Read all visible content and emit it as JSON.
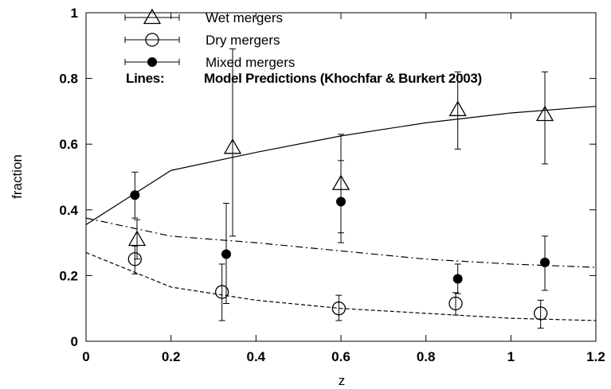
{
  "chart_data": {
    "type": "scatter",
    "xlabel": "z",
    "ylabel": "fraction",
    "xlim": [
      0,
      1.2
    ],
    "ylim": [
      0,
      1
    ],
    "xticks": [
      0,
      0.2,
      0.4,
      0.6,
      0.8,
      1,
      1.2
    ],
    "xtick_labels": [
      "0",
      "0.2",
      "0.4",
      "0.6",
      "0.8",
      "1",
      "1.2"
    ],
    "yticks": [
      0,
      0.2,
      0.4,
      0.6,
      0.8,
      1
    ],
    "ytick_labels": [
      "0",
      "0.2",
      "0.4",
      "0.6",
      "0.8",
      "1"
    ],
    "grid": false,
    "legend_position": "top-left",
    "series": [
      {
        "name": "Wet mergers",
        "marker": "open-triangle",
        "points": [
          {
            "x": 0.12,
            "y": 0.31,
            "ylow": 0.25,
            "yhigh": 0.37
          },
          {
            "x": 0.345,
            "y": 0.59,
            "ylow": 0.32,
            "yhigh": 0.89
          },
          {
            "x": 0.6,
            "y": 0.48,
            "ylow": 0.33,
            "yhigh": 0.63
          },
          {
            "x": 0.875,
            "y": 0.705,
            "ylow": 0.585,
            "yhigh": 0.82
          },
          {
            "x": 1.08,
            "y": 0.69,
            "ylow": 0.54,
            "yhigh": 0.82
          }
        ]
      },
      {
        "name": "Dry mergers",
        "marker": "open-circle",
        "points": [
          {
            "x": 0.115,
            "y": 0.25,
            "ylow": 0.205,
            "yhigh": 0.29
          },
          {
            "x": 0.32,
            "y": 0.15,
            "ylow": 0.063,
            "yhigh": 0.235
          },
          {
            "x": 0.595,
            "y": 0.1,
            "ylow": 0.063,
            "yhigh": 0.14
          },
          {
            "x": 0.87,
            "y": 0.115,
            "ylow": 0.08,
            "yhigh": 0.148
          },
          {
            "x": 1.07,
            "y": 0.085,
            "ylow": 0.04,
            "yhigh": 0.125
          }
        ]
      },
      {
        "name": "Mixed mergers",
        "marker": "filled-circle",
        "points": [
          {
            "x": 0.115,
            "y": 0.445,
            "ylow": 0.375,
            "yhigh": 0.515
          },
          {
            "x": 0.33,
            "y": 0.265,
            "ylow": 0.115,
            "yhigh": 0.42
          },
          {
            "x": 0.6,
            "y": 0.425,
            "ylow": 0.3,
            "yhigh": 0.55
          },
          {
            "x": 0.875,
            "y": 0.19,
            "ylow": 0.145,
            "yhigh": 0.235
          },
          {
            "x": 1.08,
            "y": 0.24,
            "ylow": 0.155,
            "yhigh": 0.32
          }
        ]
      }
    ],
    "model_lines": {
      "label": "Lines:",
      "description": "Model Predictions (Khochfar & Burkert 2003)",
      "curves": [
        {
          "style": "solid",
          "x": [
            0,
            0.2,
            0.4,
            0.6,
            0.8,
            1.0,
            1.2
          ],
          "y": [
            0.355,
            0.52,
            0.575,
            0.625,
            0.665,
            0.695,
            0.715
          ]
        },
        {
          "style": "dash-dot",
          "x": [
            0,
            0.2,
            0.4,
            0.6,
            0.8,
            1.0,
            1.2
          ],
          "y": [
            0.375,
            0.32,
            0.3,
            0.275,
            0.25,
            0.235,
            0.225
          ]
        },
        {
          "style": "dashed",
          "x": [
            0,
            0.2,
            0.4,
            0.6,
            0.8,
            1.0,
            1.2
          ],
          "y": [
            0.27,
            0.165,
            0.125,
            0.1,
            0.085,
            0.07,
            0.063
          ]
        }
      ]
    }
  }
}
